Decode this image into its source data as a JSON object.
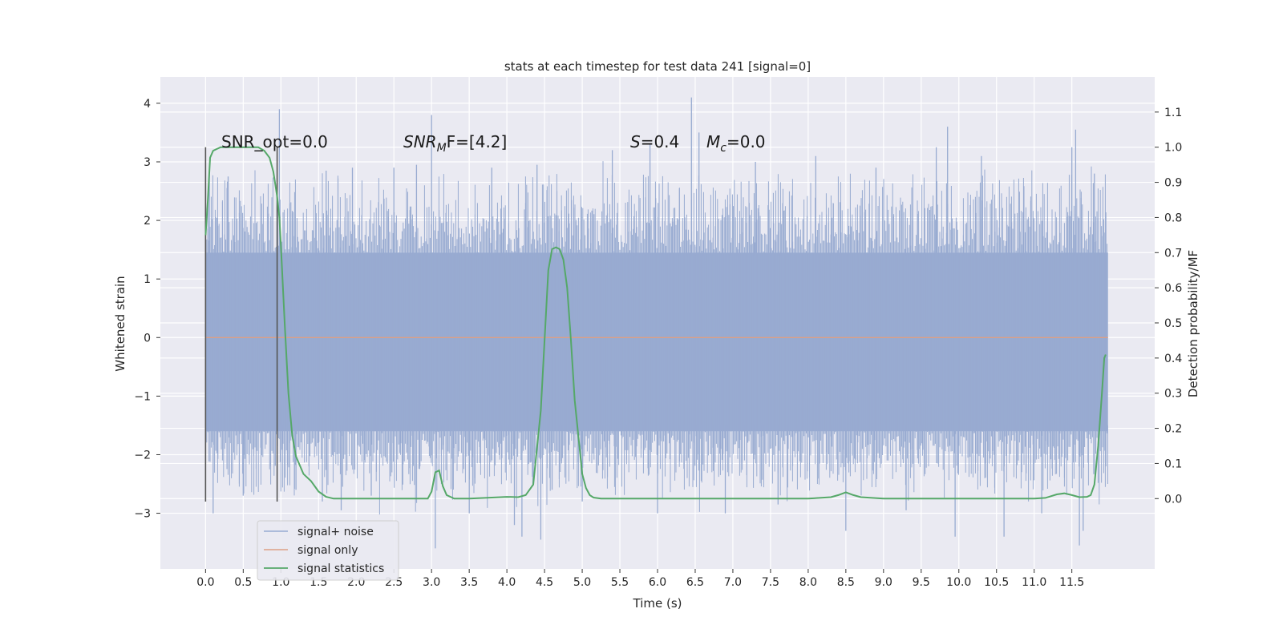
{
  "chart_data": {
    "type": "line",
    "title": "stats at each timestep for test data 241 [signal=0]",
    "xlabel": "Time (s)",
    "ylabel_left": "Whitened strain",
    "ylabel_right": "Detection probability/MF",
    "xlim": [
      -0.6,
      12.6
    ],
    "ylim_left": [
      -3.95,
      4.45
    ],
    "ylim_right": [
      -0.2,
      1.2
    ],
    "x_ticks": [
      "0.0",
      "0.5",
      "1.0",
      "1.5",
      "2.0",
      "2.5",
      "3.0",
      "3.5",
      "4.0",
      "4.5",
      "5.0",
      "5.5",
      "6.0",
      "6.5",
      "7.0",
      "7.5",
      "8.0",
      "8.5",
      "9.0",
      "9.5",
      "10.0",
      "10.5",
      "11.0",
      "11.5"
    ],
    "y_ticks_left": [
      "−3",
      "−2",
      "−1",
      "0",
      "1",
      "2",
      "3",
      "4"
    ],
    "y_ticks_right": [
      "0.0",
      "0.1",
      "0.2",
      "0.3",
      "0.4",
      "0.5",
      "0.6",
      "0.7",
      "0.8",
      "0.9",
      "1.0",
      "1.1"
    ],
    "grid": true,
    "legend_position": "lower-left",
    "colors": {
      "background": "#eaeaf2",
      "grid": "#ffffff",
      "noise": "#98abd1",
      "signal_only": "#dd9f84",
      "statistics": "#55a868",
      "vlines": "#555555"
    },
    "annotations": {
      "snr_opt": "SNR_opt=0.0",
      "snr_mf_sym": "SNR",
      "snr_mf_sub": "M",
      "snr_mf_rest": "F=[4.2]",
      "s_sym": "S",
      "s_val": "=0.4",
      "mc_sym": "M",
      "mc_sub": "c",
      "mc_val": "=0.0"
    },
    "vlines_x": [
      0.0,
      0.95
    ],
    "series": [
      {
        "name": "signal+ noise",
        "axis": "left",
        "style": "noise",
        "band_y": [
          -1.6,
          1.45
        ],
        "x_range": [
          0.0,
          11.98
        ],
        "spikes": [
          {
            "x": 0.05,
            "y": 2.85
          },
          {
            "x": 0.1,
            "y": -3.0
          },
          {
            "x": 0.3,
            "y": 2.75
          },
          {
            "x": 0.5,
            "y": -2.7
          },
          {
            "x": 0.98,
            "y": 3.9
          },
          {
            "x": 1.2,
            "y": -2.6
          },
          {
            "x": 1.55,
            "y": -2.8
          },
          {
            "x": 1.6,
            "y": 2.85
          },
          {
            "x": 1.8,
            "y": -2.95
          },
          {
            "x": 1.95,
            "y": 2.9
          },
          {
            "x": 2.2,
            "y": -2.7
          },
          {
            "x": 2.5,
            "y": 2.9
          },
          {
            "x": 2.8,
            "y": 2.95
          },
          {
            "x": 3.0,
            "y": 3.8
          },
          {
            "x": 3.05,
            "y": -3.6
          },
          {
            "x": 3.5,
            "y": -3.0
          },
          {
            "x": 3.8,
            "y": 2.9
          },
          {
            "x": 4.1,
            "y": -3.2
          },
          {
            "x": 4.2,
            "y": -3.4
          },
          {
            "x": 4.4,
            "y": 2.95
          },
          {
            "x": 4.45,
            "y": -3.45
          },
          {
            "x": 4.6,
            "y": -2.6
          },
          {
            "x": 5.0,
            "y": -2.8
          },
          {
            "x": 5.4,
            "y": 3.2
          },
          {
            "x": 5.9,
            "y": 3.3
          },
          {
            "x": 6.0,
            "y": -3.0
          },
          {
            "x": 6.45,
            "y": 4.1
          },
          {
            "x": 6.55,
            "y": 3.5
          },
          {
            "x": 6.9,
            "y": -3.0
          },
          {
            "x": 7.3,
            "y": 3.0
          },
          {
            "x": 7.6,
            "y": -2.85
          },
          {
            "x": 8.1,
            "y": 3.1
          },
          {
            "x": 8.5,
            "y": -3.3
          },
          {
            "x": 8.9,
            "y": 2.9
          },
          {
            "x": 9.3,
            "y": -2.95
          },
          {
            "x": 9.7,
            "y": 3.25
          },
          {
            "x": 9.85,
            "y": 3.6
          },
          {
            "x": 9.95,
            "y": -3.4
          },
          {
            "x": 10.3,
            "y": 3.1
          },
          {
            "x": 10.6,
            "y": -3.4
          },
          {
            "x": 11.1,
            "y": -3.0
          },
          {
            "x": 11.5,
            "y": 3.25
          },
          {
            "x": 11.55,
            "y": 3.55
          },
          {
            "x": 11.6,
            "y": -3.55
          },
          {
            "x": 11.65,
            "y": -3.3
          },
          {
            "x": 11.8,
            "y": 2.8
          }
        ]
      },
      {
        "name": "signal only",
        "axis": "left",
        "style": "signal_only",
        "x": [
          0.0,
          11.98
        ],
        "y": [
          0.0,
          0.0
        ]
      },
      {
        "name": "signal statistics",
        "axis": "right",
        "style": "statistics",
        "x": [
          0.0,
          0.03,
          0.06,
          0.1,
          0.15,
          0.2,
          0.3,
          0.5,
          0.7,
          0.78,
          0.85,
          0.9,
          0.95,
          0.98,
          1.0,
          1.05,
          1.1,
          1.15,
          1.2,
          1.3,
          1.4,
          1.5,
          1.6,
          1.7,
          2.0,
          2.5,
          2.95,
          3.0,
          3.05,
          3.1,
          3.15,
          3.2,
          3.3,
          3.5,
          3.8,
          4.0,
          4.15,
          4.25,
          4.35,
          4.45,
          4.5,
          4.55,
          4.6,
          4.65,
          4.7,
          4.75,
          4.8,
          4.85,
          4.9,
          5.0,
          5.05,
          5.1,
          5.15,
          5.25,
          5.5,
          6.0,
          7.0,
          8.0,
          8.3,
          8.4,
          8.5,
          8.6,
          8.7,
          9.0,
          10.0,
          11.0,
          11.15,
          11.3,
          11.4,
          11.5,
          11.6,
          11.7,
          11.75,
          11.8,
          11.85,
          11.9,
          11.93,
          11.95
        ],
        "y": [
          0.75,
          0.85,
          0.97,
          0.99,
          0.995,
          1.0,
          1.0,
          1.0,
          1.0,
          0.99,
          0.97,
          0.93,
          0.86,
          0.8,
          0.72,
          0.5,
          0.3,
          0.18,
          0.12,
          0.07,
          0.05,
          0.02,
          0.005,
          0.0,
          0.0,
          0.0,
          0.0,
          0.02,
          0.075,
          0.08,
          0.035,
          0.01,
          0.0,
          0.0,
          0.003,
          0.005,
          0.004,
          0.01,
          0.04,
          0.25,
          0.45,
          0.65,
          0.71,
          0.715,
          0.71,
          0.68,
          0.6,
          0.45,
          0.28,
          0.07,
          0.03,
          0.01,
          0.003,
          0.0,
          0.0,
          0.0,
          0.0,
          0.0,
          0.004,
          0.01,
          0.018,
          0.01,
          0.004,
          0.0,
          0.0,
          0.0,
          0.002,
          0.012,
          0.015,
          0.01,
          0.004,
          0.005,
          0.01,
          0.04,
          0.15,
          0.3,
          0.4,
          0.41
        ]
      }
    ]
  }
}
